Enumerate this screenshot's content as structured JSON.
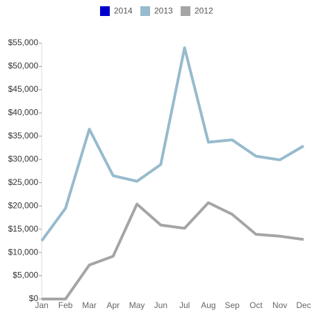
{
  "chart_data": {
    "type": "line",
    "categories": [
      "Jan",
      "Feb",
      "Mar",
      "Apr",
      "May",
      "Jun",
      "Jul",
      "Aug",
      "Sep",
      "Oct",
      "Nov",
      "Dec"
    ],
    "series": [
      {
        "name": "2014",
        "color": "#0000cc",
        "values": [
          null,
          null,
          null,
          null,
          null,
          null,
          null,
          null,
          null,
          null,
          null,
          null
        ]
      },
      {
        "name": "2013",
        "color": "#97bbcd",
        "values": [
          12500,
          19500,
          36500,
          26500,
          25300,
          28900,
          54000,
          33700,
          34200,
          30700,
          29900,
          32900
        ]
      },
      {
        "name": "2012",
        "color": "#a5a5a5",
        "values": [
          0,
          0,
          7300,
          9200,
          20400,
          15900,
          15200,
          20700,
          18200,
          13900,
          13500,
          12800
        ]
      }
    ],
    "ylim": [
      0,
      55000
    ],
    "yticks": [
      {
        "value": 0,
        "label": "$0"
      },
      {
        "value": 5000,
        "label": "$5,000"
      },
      {
        "value": 10000,
        "label": "$10,000"
      },
      {
        "value": 15000,
        "label": "$15,000"
      },
      {
        "value": 20000,
        "label": "$20,000"
      },
      {
        "value": 25000,
        "label": "$25,000"
      },
      {
        "value": 30000,
        "label": "$30,000"
      },
      {
        "value": 35000,
        "label": "$35,000"
      },
      {
        "value": 40000,
        "label": "$40,000"
      },
      {
        "value": 45000,
        "label": "$45,000"
      },
      {
        "value": 50000,
        "label": "$50,000"
      },
      {
        "value": 55000,
        "label": "$55,000"
      }
    ],
    "grid": false,
    "legend": "top"
  }
}
